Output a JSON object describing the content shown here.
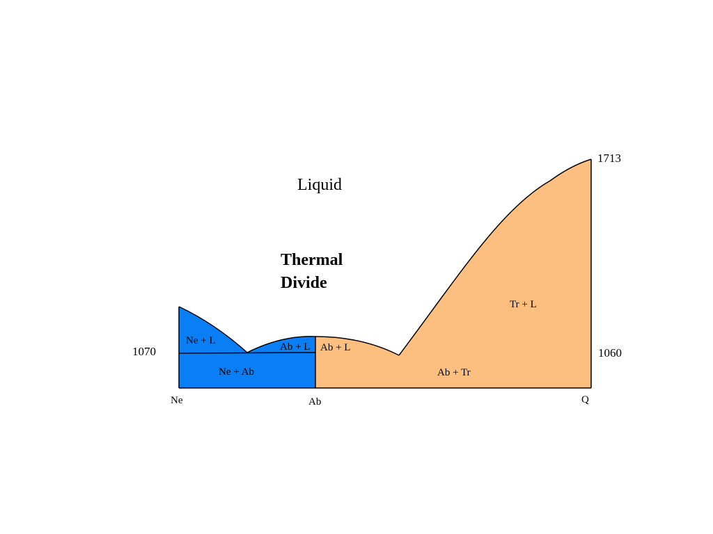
{
  "colors": {
    "ne_side_fill": "#0a7ff5",
    "q_side_fill": "#fdbf80",
    "outline": "#000000",
    "background": "#ffffff"
  },
  "field_labels": {
    "liquid": "Liquid",
    "thermal_divide_line1": "Thermal",
    "thermal_divide_line2": "Divide",
    "ne_plus_l": "Ne + L",
    "ab_plus_l_left": "Ab + L",
    "ab_plus_l_right": "Ab + L",
    "ne_plus_ab": "Ne + Ab",
    "tr_plus_l": "Tr + L",
    "ab_plus_tr": "Ab + Tr"
  },
  "temperatures": {
    "q_melting": "1713",
    "ne_side_solidus": "1070",
    "q_side_solidus": "1060"
  },
  "components": {
    "ne": "Ne",
    "ab": "Ab",
    "q": "Q"
  }
}
